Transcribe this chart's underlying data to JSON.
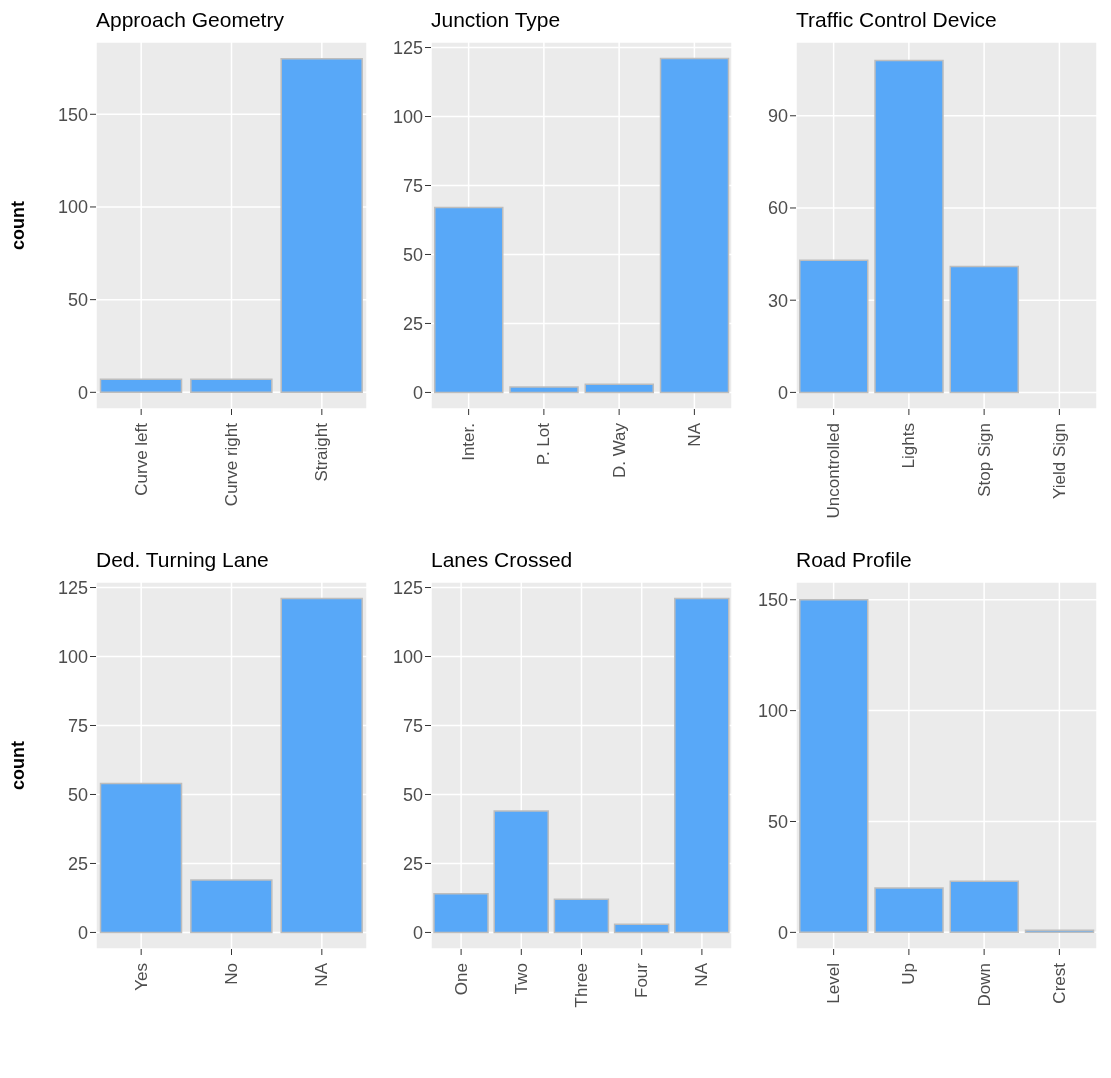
{
  "chart_data": [
    {
      "type": "bar",
      "title": "Approach Geometry",
      "ylabel": "count",
      "categories": [
        "Curve left",
        "Curve right",
        "Straight"
      ],
      "values": [
        7,
        7,
        180
      ],
      "color": "#58a8f8",
      "ylim": [
        -9,
        189
      ],
      "yticks": [
        0,
        50,
        100,
        150
      ],
      "grid": true
    },
    {
      "type": "bar",
      "title": "Junction Type",
      "categories": [
        "Inter.",
        "P. Lot",
        "D. Way",
        "NA"
      ],
      "values": [
        67,
        2,
        3,
        121
      ],
      "color": "#58a8f8",
      "ylim": [
        -6,
        127
      ],
      "yticks": [
        0,
        25,
        50,
        75,
        100,
        125
      ],
      "grid": true
    },
    {
      "type": "bar",
      "title": "Traffic Control Device",
      "categories": [
        "Uncontrolled",
        "Lights",
        "Stop Sign",
        "Yield Sign"
      ],
      "values": [
        43,
        108,
        41,
        0
      ],
      "color": "#58a8f8",
      "ylim": [
        -5.4,
        114
      ],
      "yticks": [
        0,
        30,
        60,
        90
      ],
      "grid": true
    },
    {
      "type": "bar",
      "title": "Ded. Turning Lane",
      "ylabel": "count",
      "categories": [
        "Yes",
        "No",
        "NA"
      ],
      "values": [
        54,
        19,
        121
      ],
      "color": "#58a8f8",
      "ylim": [
        -6,
        127
      ],
      "yticks": [
        0,
        25,
        50,
        75,
        100,
        125
      ],
      "grid": true
    },
    {
      "type": "bar",
      "title": "Lanes Crossed",
      "categories": [
        "One",
        "Two",
        "Three",
        "Four",
        "NA"
      ],
      "values": [
        14,
        44,
        12,
        3,
        121
      ],
      "color": "#58a8f8",
      "ylim": [
        -6,
        127
      ],
      "yticks": [
        0,
        25,
        50,
        75,
        100,
        125
      ],
      "grid": true
    },
    {
      "type": "bar",
      "title": "Road Profile",
      "categories": [
        "Level",
        "Up",
        "Down",
        "Crest"
      ],
      "values": [
        150,
        20,
        23,
        1
      ],
      "color": "#58a8f8",
      "ylim": [
        -7.5,
        158
      ],
      "yticks": [
        0,
        50,
        100,
        150
      ],
      "grid": true
    }
  ]
}
